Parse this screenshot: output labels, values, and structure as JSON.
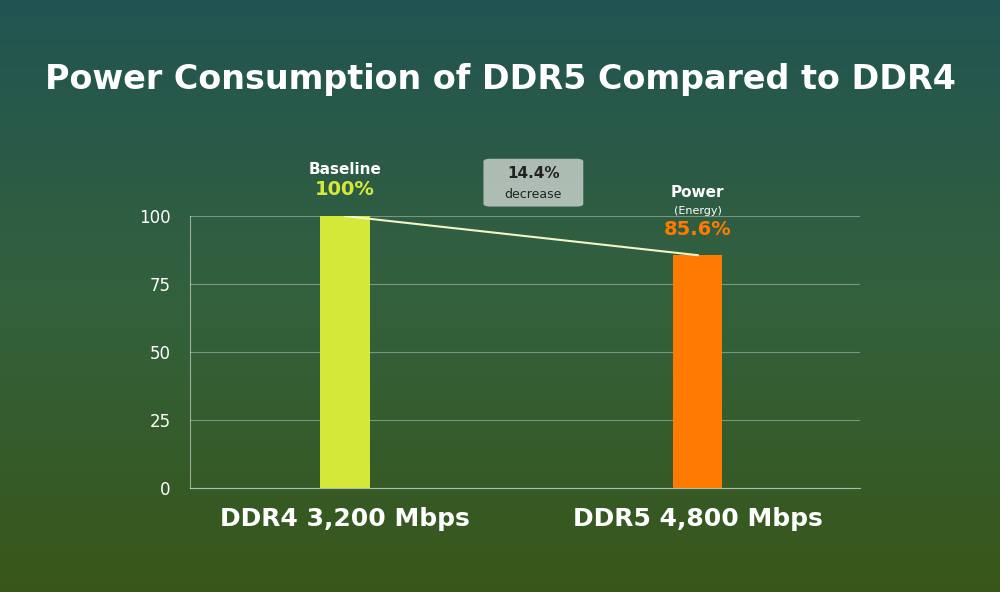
{
  "chart_data": {
    "type": "bar",
    "title": "Power Consumption of DDR5 Compared to DDR4",
    "categories": [
      "DDR4 3,200 Mbps",
      "DDR5 4,800 Mbps"
    ],
    "values": [
      100,
      85.6
    ],
    "value_labels": [
      "100%",
      "85.6%"
    ],
    "data_labels": true,
    "colors": [
      "#d4e83a",
      "#ff7a00"
    ],
    "bar_captions": [
      [
        "Baseline"
      ],
      [
        "Power",
        "(Energy)"
      ]
    ],
    "change_annotation": [
      "14.4%",
      "decrease"
    ],
    "ylim": [
      0,
      100
    ],
    "yticks": [
      0,
      25,
      50,
      75,
      100
    ],
    "grid": true
  }
}
